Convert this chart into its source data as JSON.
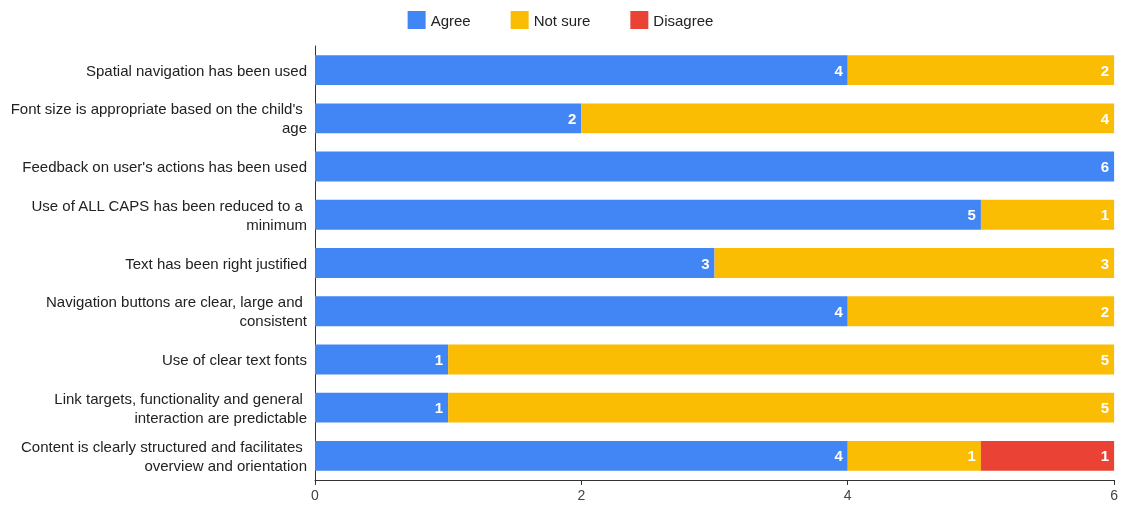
{
  "chart_data": {
    "type": "bar",
    "orientation": "horizontal",
    "stacked": true,
    "legend": "top",
    "grid": false,
    "categories": [
      "Spatial navigation has been used",
      "Font size is appropriate based on the child's age",
      "Feedback on user's actions has been used",
      "Use of ALL CAPS has been reduced to a minimum",
      "Text has been right justified",
      "Navigation buttons are clear, large and consistent",
      "Use of clear text fonts",
      "Link targets, functionality and general interaction are predictable",
      "Content is clearly structured and facilitates overview and orientation"
    ],
    "series": [
      {
        "name": "Agree",
        "color": "#4285f4",
        "values": [
          4,
          2,
          6,
          5,
          3,
          4,
          1,
          1,
          4
        ],
        "value_labels": [
          "4",
          "2",
          "6",
          "5",
          "3",
          "4",
          "1",
          "1",
          "4"
        ]
      },
      {
        "name": "Not sure",
        "color": "#fbbc04",
        "values": [
          2,
          4,
          0,
          1,
          3,
          2,
          5,
          5,
          1
        ],
        "value_labels": [
          "2",
          "4",
          null,
          "1",
          "3",
          "2",
          "5",
          "5",
          "1"
        ]
      },
      {
        "name": "Disagree",
        "color": "#ea4335",
        "values": [
          0,
          0,
          0,
          0,
          0,
          0,
          0,
          0,
          1
        ],
        "value_labels": [
          null,
          null,
          null,
          null,
          null,
          null,
          null,
          null,
          "1"
        ]
      }
    ],
    "xlim": [
      0,
      6
    ],
    "xticks": [
      0,
      2,
      4,
      6
    ]
  }
}
